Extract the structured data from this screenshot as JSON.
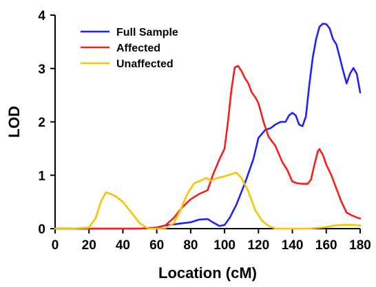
{
  "chart_data": {
    "type": "line",
    "title": "",
    "xlabel": "Location (cM)",
    "ylabel": "LOD",
    "xlim": [
      0,
      180
    ],
    "ylim": [
      0,
      4
    ],
    "xticks": [
      0,
      20,
      40,
      60,
      80,
      100,
      120,
      140,
      160,
      180
    ],
    "yticks": [
      0,
      1,
      2,
      3,
      4
    ],
    "grid": false,
    "legend_position": "top-left",
    "series": [
      {
        "name": "Full Sample",
        "color": "#1f1fff",
        "points": [
          [
            0,
            0
          ],
          [
            10,
            0
          ],
          [
            20,
            0
          ],
          [
            30,
            0
          ],
          [
            40,
            0
          ],
          [
            50,
            0
          ],
          [
            60,
            0.02
          ],
          [
            65,
            0.06
          ],
          [
            70,
            0.08
          ],
          [
            75,
            0.1
          ],
          [
            80,
            0.12
          ],
          [
            85,
            0.17
          ],
          [
            90,
            0.18
          ],
          [
            93,
            0.12
          ],
          [
            97,
            0.05
          ],
          [
            100,
            0.07
          ],
          [
            103,
            0.2
          ],
          [
            107,
            0.45
          ],
          [
            112,
            0.85
          ],
          [
            117,
            1.3
          ],
          [
            120,
            1.7
          ],
          [
            124,
            1.85
          ],
          [
            127,
            1.88
          ],
          [
            130,
            1.95
          ],
          [
            133,
            2.0
          ],
          [
            136,
            2.0
          ],
          [
            138,
            2.12
          ],
          [
            140,
            2.17
          ],
          [
            142,
            2.12
          ],
          [
            144,
            1.95
          ],
          [
            146,
            1.92
          ],
          [
            148,
            2.1
          ],
          [
            150,
            2.7
          ],
          [
            152,
            3.2
          ],
          [
            154,
            3.55
          ],
          [
            156,
            3.78
          ],
          [
            158,
            3.84
          ],
          [
            160,
            3.83
          ],
          [
            162,
            3.75
          ],
          [
            164,
            3.55
          ],
          [
            166,
            3.45
          ],
          [
            168,
            3.2
          ],
          [
            170,
            2.95
          ],
          [
            172,
            2.72
          ],
          [
            174,
            2.9
          ],
          [
            176,
            3.01
          ],
          [
            178,
            2.9
          ],
          [
            180,
            2.55
          ]
        ]
      },
      {
        "name": "Affected",
        "color": "#ff1a1a",
        "points": [
          [
            0,
            0
          ],
          [
            10,
            0
          ],
          [
            20,
            0
          ],
          [
            30,
            0
          ],
          [
            40,
            0
          ],
          [
            50,
            0
          ],
          [
            60,
            0.02
          ],
          [
            65,
            0.06
          ],
          [
            70,
            0.2
          ],
          [
            75,
            0.4
          ],
          [
            80,
            0.55
          ],
          [
            85,
            0.65
          ],
          [
            90,
            0.72
          ],
          [
            93,
            1.0
          ],
          [
            97,
            1.3
          ],
          [
            100,
            1.5
          ],
          [
            102,
            2.0
          ],
          [
            104,
            2.6
          ],
          [
            106,
            3.02
          ],
          [
            108,
            3.05
          ],
          [
            110,
            2.95
          ],
          [
            112,
            2.82
          ],
          [
            114,
            2.72
          ],
          [
            116,
            2.55
          ],
          [
            118,
            2.47
          ],
          [
            120,
            2.35
          ],
          [
            123,
            2.0
          ],
          [
            126,
            1.72
          ],
          [
            130,
            1.55
          ],
          [
            134,
            1.25
          ],
          [
            137,
            1.1
          ],
          [
            140,
            0.88
          ],
          [
            143,
            0.85
          ],
          [
            146,
            0.84
          ],
          [
            149,
            0.84
          ],
          [
            151,
            0.92
          ],
          [
            153,
            1.2
          ],
          [
            155,
            1.45
          ],
          [
            156,
            1.49
          ],
          [
            158,
            1.38
          ],
          [
            160,
            1.2
          ],
          [
            163,
            1.0
          ],
          [
            166,
            0.75
          ],
          [
            169,
            0.5
          ],
          [
            172,
            0.3
          ],
          [
            175,
            0.25
          ],
          [
            178,
            0.21
          ],
          [
            180,
            0.19
          ]
        ]
      },
      {
        "name": "Unaffected",
        "color": "#f7c400",
        "points": [
          [
            0,
            0
          ],
          [
            10,
            0
          ],
          [
            20,
            0.02
          ],
          [
            24,
            0.2
          ],
          [
            27,
            0.5
          ],
          [
            30,
            0.68
          ],
          [
            33,
            0.65
          ],
          [
            36,
            0.6
          ],
          [
            40,
            0.5
          ],
          [
            45,
            0.3
          ],
          [
            50,
            0.1
          ],
          [
            55,
            0.0
          ],
          [
            60,
            0.0
          ],
          [
            65,
            0.01
          ],
          [
            70,
            0.1
          ],
          [
            74,
            0.35
          ],
          [
            78,
            0.65
          ],
          [
            82,
            0.85
          ],
          [
            86,
            0.9
          ],
          [
            89,
            0.95
          ],
          [
            92,
            0.9
          ],
          [
            96,
            0.95
          ],
          [
            100,
            0.98
          ],
          [
            104,
            1.02
          ],
          [
            107,
            1.05
          ],
          [
            110,
            0.95
          ],
          [
            114,
            0.7
          ],
          [
            118,
            0.35
          ],
          [
            122,
            0.15
          ],
          [
            126,
            0.05
          ],
          [
            130,
            0.0
          ],
          [
            140,
            0.0
          ],
          [
            150,
            0.0
          ],
          [
            160,
            0.03
          ],
          [
            165,
            0.06
          ],
          [
            170,
            0.07
          ],
          [
            175,
            0.07
          ],
          [
            180,
            0.06
          ]
        ]
      }
    ]
  }
}
